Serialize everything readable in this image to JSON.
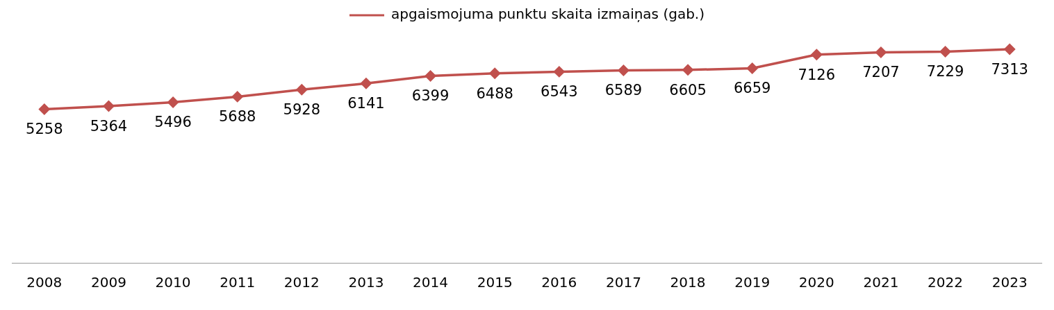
{
  "chart_data": {
    "type": "line",
    "categories": [
      "2008",
      "2009",
      "2010",
      "2011",
      "2012",
      "2013",
      "2014",
      "2015",
      "2016",
      "2017",
      "2018",
      "2019",
      "2020",
      "2021",
      "2022",
      "2023"
    ],
    "series": [
      {
        "name": "apgaismojuma punktu skaita izmaiņas (gab.)",
        "color": "#c0504d",
        "values": [
          5258,
          5364,
          5496,
          5688,
          5928,
          6141,
          6399,
          6488,
          6543,
          6589,
          6605,
          6659,
          7126,
          7207,
          7229,
          7313
        ]
      }
    ],
    "tick_labels": "x",
    "grid": false,
    "legend": "top",
    "marker": "diamond",
    "line_style": "solid",
    "data_labels": true
  }
}
